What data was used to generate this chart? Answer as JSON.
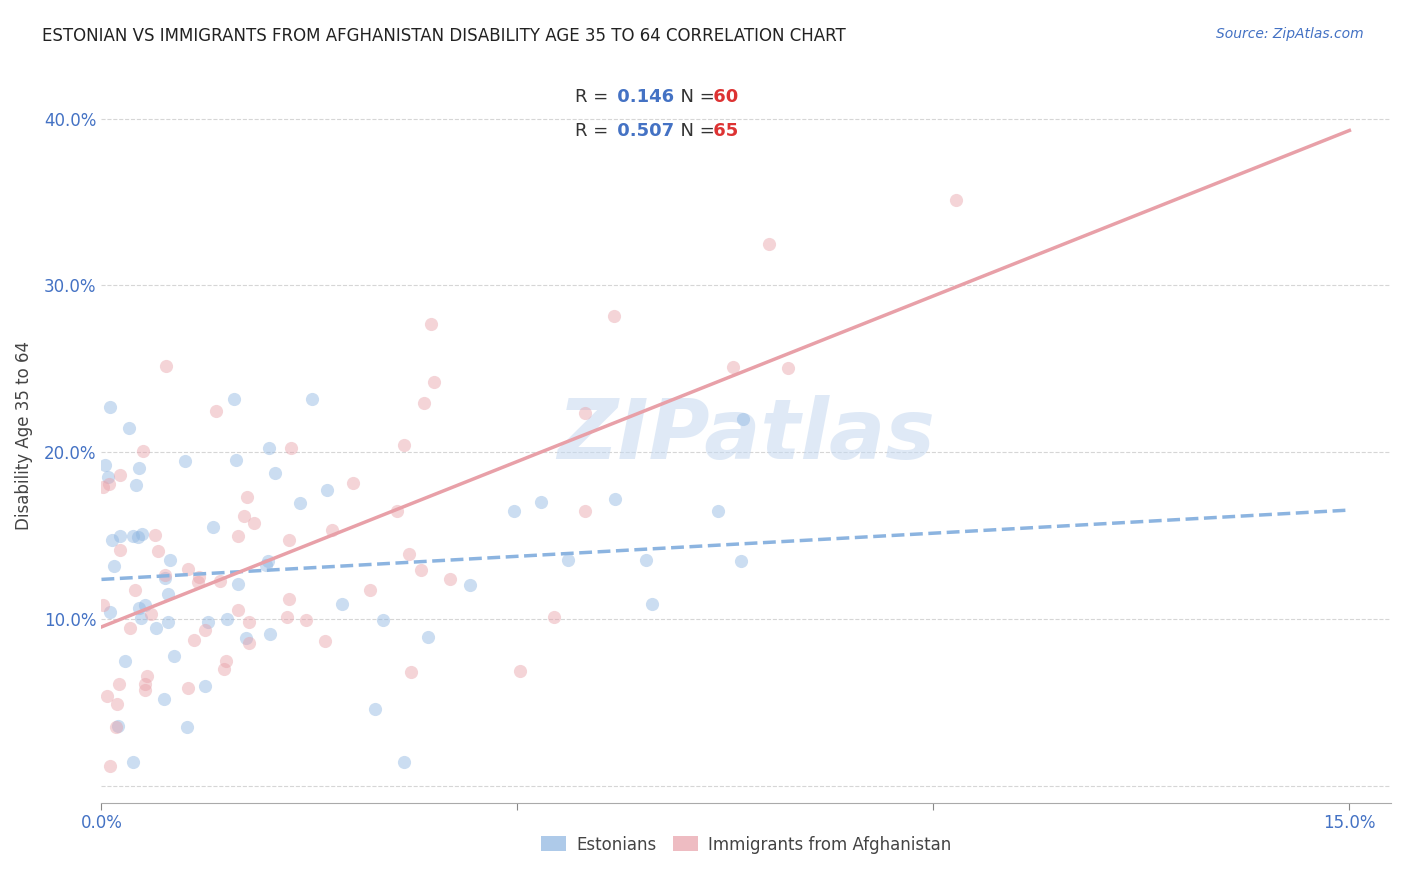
{
  "title": "ESTONIAN VS IMMIGRANTS FROM AFGHANISTAN DISABILITY AGE 35 TO 64 CORRELATION CHART",
  "source": "Source: ZipAtlas.com",
  "ylabel": "Disability Age 35 to 64",
  "xlim": [
    0.0,
    0.155
  ],
  "ylim": [
    -0.01,
    0.43
  ],
  "xtick_positions": [
    0.0,
    0.05,
    0.1,
    0.15
  ],
  "xtick_labels": [
    "0.0%",
    "",
    "",
    "15.0%"
  ],
  "ytick_positions": [
    0.0,
    0.1,
    0.2,
    0.3,
    0.4
  ],
  "ytick_labels": [
    "",
    "10.0%",
    "20.0%",
    "30.0%",
    "40.0%"
  ],
  "estonians_color": "#8cb4e0",
  "immigrants_color": "#e8a0a8",
  "estonians_R": 0.146,
  "estonians_N": 60,
  "immigrants_R": 0.507,
  "immigrants_N": 65,
  "watermark": "ZIPatlas",
  "background_color": "#ffffff",
  "grid_color": "#cccccc",
  "axis_color": "#4472c4",
  "title_color": "#222222",
  "marker_size": 90,
  "marker_alpha": 0.45,
  "regression_lw": 2.5,
  "legend_r_color": "#4472c4",
  "legend_n_color": "#dd3333",
  "bottom_legend_labels": [
    "Estonians",
    "Immigrants from Afghanistan"
  ]
}
